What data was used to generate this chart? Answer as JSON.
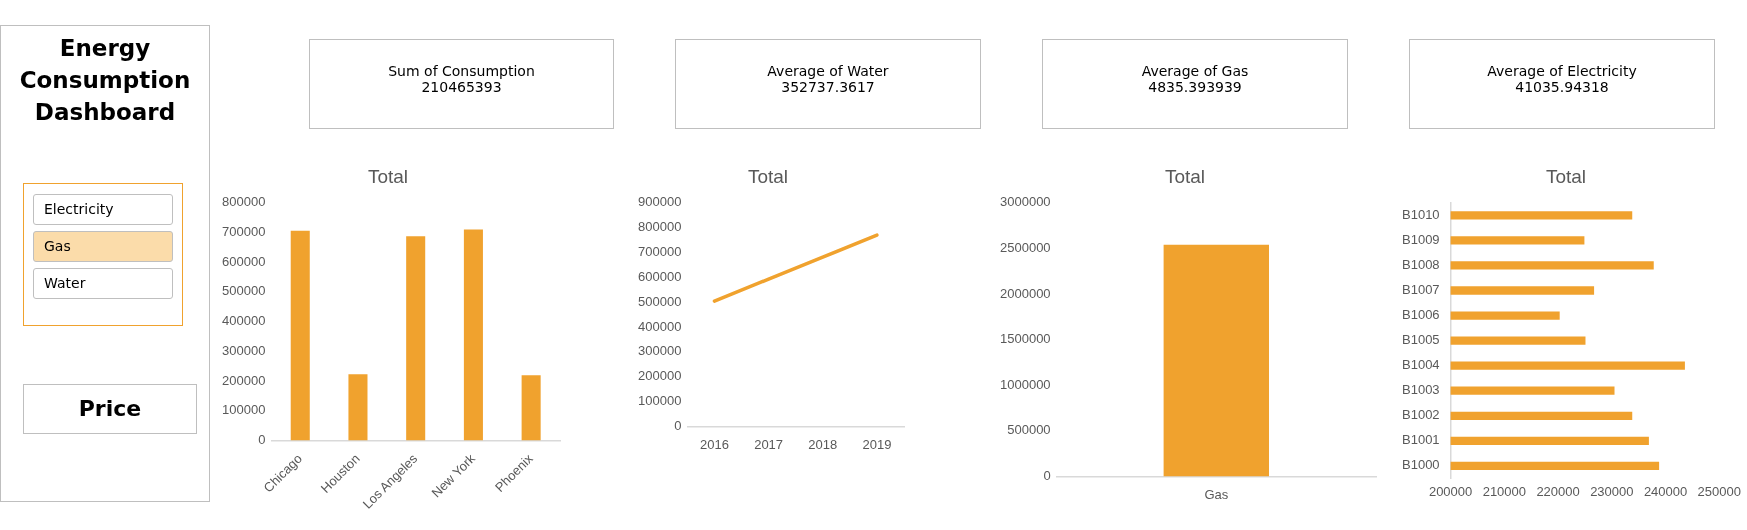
{
  "chart_data": [
    {
      "type": "other",
      "title": "Energy Consumption Dashboard",
      "categories": [
        "Electricity",
        "Gas",
        "Water"
      ],
      "colors": [
        "#ffffff",
        "#fbdcaa",
        "#ffffff"
      ],
      "annotations": [
        "Price"
      ]
    },
    {
      "type": "other",
      "title": "Sum of Consumption",
      "annotations": [
        "210465393"
      ]
    },
    {
      "type": "other",
      "title": "Average of Water",
      "annotations": [
        "352737.3617"
      ]
    },
    {
      "type": "other",
      "title": "Average of Gas",
      "annotations": [
        "4835.393939"
      ]
    },
    {
      "type": "other",
      "title": "Average of Electricity",
      "annotations": [
        "41035.94318"
      ]
    },
    {
      "type": "bar",
      "title": "Total",
      "categories": [
        "Chicago",
        "Houston",
        "Los Angeles",
        "New York",
        "Phoenix"
      ],
      "values": [
        706000,
        223000,
        687000,
        710000,
        219000
      ],
      "color": "#f0a22e",
      "ylim": [
        0,
        800000
      ],
      "yticks": [
        0,
        100000,
        200000,
        300000,
        400000,
        500000,
        600000,
        700000,
        800000
      ]
    },
    {
      "type": "line",
      "title": "Total",
      "categories": [
        "2016",
        "2017",
        "2018",
        "2019"
      ],
      "values": [
        504000,
        593000,
        681000,
        770000
      ],
      "color": "#f0a22e",
      "ylim": [
        0,
        900000
      ],
      "yticks": [
        0,
        100000,
        200000,
        300000,
        400000,
        500000,
        600000,
        700000,
        800000,
        900000
      ]
    },
    {
      "type": "bar",
      "title": "Total",
      "categories": [
        "Gas"
      ],
      "values": [
        2540000
      ],
      "color": "#f0a22e",
      "ylim": [
        0,
        3000000
      ],
      "yticks": [
        0,
        500000,
        1000000,
        1500000,
        2000000,
        2500000,
        3000000
      ]
    },
    {
      "type": "bar",
      "title": "Total",
      "orientation": "horizontal",
      "categories": [
        "B1010",
        "B1009",
        "B1008",
        "B1007",
        "B1006",
        "B1005",
        "B1004",
        "B1003",
        "B1002",
        "B1001",
        "B1000"
      ],
      "values": [
        233800,
        224900,
        237800,
        226700,
        220300,
        225100,
        243600,
        230500,
        233800,
        236900,
        238800
      ],
      "color": "#f0a22e",
      "xlim": [
        200000,
        250000
      ],
      "xticks": [
        200000,
        210000,
        220000,
        230000,
        240000,
        250000
      ]
    }
  ]
}
